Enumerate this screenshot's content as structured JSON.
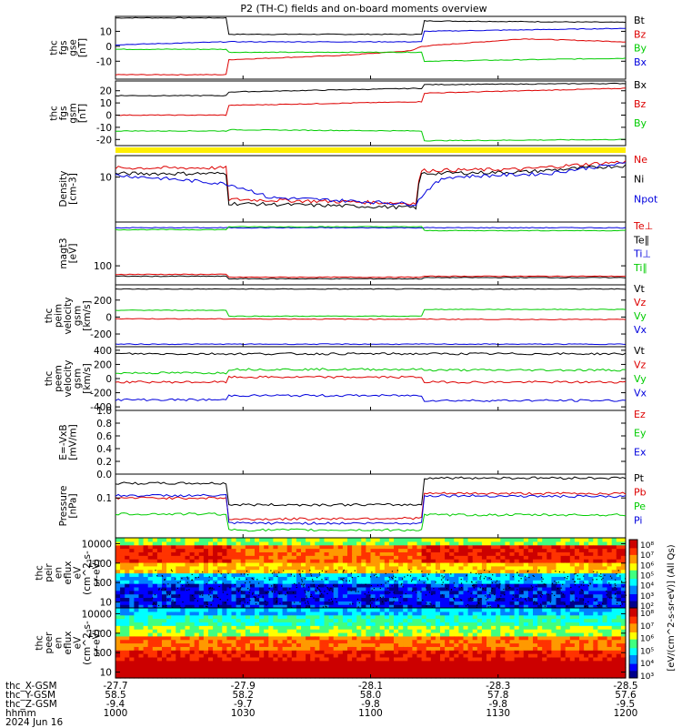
{
  "title": "P2 (TH-C) fields and on-board moments overview",
  "colors": {
    "black": "#000000",
    "red": "#dd0000",
    "green": "#00cc00",
    "blue": "#0000dd",
    "yellow": "#ffee00"
  },
  "chart_data": [
    {
      "type": "line",
      "panel": "fgs_gse",
      "ylabel": [
        "thc",
        "fgs",
        "gse",
        "[nT]"
      ],
      "ylim": [
        -22,
        20
      ],
      "ytick_labels": [
        "10",
        "0",
        "-10"
      ],
      "ytick_values": [
        10,
        0,
        -10
      ],
      "series": [
        {
          "name": "Bt",
          "color": "#000000",
          "segments": [
            [
              0,
              19
            ],
            [
              0.22,
              19
            ],
            [
              0.22,
              8
            ],
            [
              0.6,
              8
            ],
            [
              0.6,
              17
            ],
            [
              1,
              16
            ]
          ]
        },
        {
          "name": "Bz",
          "color": "#dd0000",
          "segments": [
            [
              0,
              -19
            ],
            [
              0.22,
              -19
            ],
            [
              0.22,
              -9
            ],
            [
              0.45,
              -6
            ],
            [
              0.58,
              -3
            ],
            [
              0.6,
              0
            ],
            [
              0.8,
              5
            ],
            [
              1,
              3
            ]
          ]
        },
        {
          "name": "By",
          "color": "#00cc00",
          "segments": [
            [
              0,
              -2
            ],
            [
              0.22,
              -2
            ],
            [
              0.22,
              -4
            ],
            [
              0.6,
              -4
            ],
            [
              0.6,
              -10
            ],
            [
              1,
              -8
            ]
          ]
        },
        {
          "name": "Bx",
          "color": "#0000dd",
          "segments": [
            [
              0,
              1
            ],
            [
              0.22,
              3
            ],
            [
              0.6,
              3
            ],
            [
              0.6,
              10
            ],
            [
              1,
              12
            ]
          ]
        }
      ]
    },
    {
      "type": "line",
      "panel": "fgs_gsm",
      "ylabel": [
        "thc",
        "fgs",
        "gsm",
        "[nT]"
      ],
      "ylim": [
        -25,
        28
      ],
      "ytick_labels": [
        "20",
        "10",
        "0",
        "-10",
        "-20"
      ],
      "ytick_values": [
        20,
        10,
        0,
        -10,
        -20
      ],
      "series": [
        {
          "name": "Bx",
          "color": "#000000",
          "segments": [
            [
              0,
              16
            ],
            [
              0.22,
              16
            ],
            [
              0.22,
              19
            ],
            [
              0.6,
              22
            ],
            [
              0.6,
              25
            ],
            [
              1,
              26
            ]
          ]
        },
        {
          "name": "Bz",
          "color": "#dd0000",
          "segments": [
            [
              0,
              0
            ],
            [
              0.22,
              0
            ],
            [
              0.22,
              8
            ],
            [
              0.6,
              11
            ],
            [
              0.6,
              18
            ],
            [
              1,
              22
            ]
          ]
        },
        {
          "name": "By",
          "color": "#00cc00",
          "segments": [
            [
              0,
              -13
            ],
            [
              0.22,
              -13
            ],
            [
              0.22,
              -12
            ],
            [
              0.6,
              -13
            ],
            [
              0.6,
              -21
            ],
            [
              1,
              -20
            ]
          ]
        }
      ]
    },
    {
      "type": "line",
      "panel": "density",
      "ylabel": [
        "Density",
        "[cm-3]"
      ],
      "ylim": [
        1,
        30
      ],
      "yscale": "log",
      "ytick_labels": [
        "10"
      ],
      "ytick_values": [
        10
      ],
      "series": [
        {
          "name": "Ne",
          "color": "#dd0000",
          "segments": [
            [
              0,
              16
            ],
            [
              0.22,
              16
            ],
            [
              0.22,
              3.2
            ],
            [
              0.59,
              2.6
            ],
            [
              0.6,
              14
            ],
            [
              0.8,
              15
            ],
            [
              1,
              22
            ]
          ]
        },
        {
          "name": "Ni",
          "color": "#000000",
          "segments": [
            [
              0,
              12
            ],
            [
              0.22,
              12
            ],
            [
              0.22,
              2.6
            ],
            [
              0.59,
              2.1
            ],
            [
              0.6,
              12
            ],
            [
              0.8,
              13
            ],
            [
              1,
              18
            ]
          ]
        },
        {
          "name": "Npot",
          "color": "#0000dd",
          "segments": [
            [
              0,
              11
            ],
            [
              0.22,
              7
            ],
            [
              0.3,
              3.5
            ],
            [
              0.59,
              2.5
            ],
            [
              0.65,
              10
            ],
            [
              0.85,
              12
            ],
            [
              1,
              20
            ]
          ]
        }
      ]
    },
    {
      "type": "line",
      "panel": "temperature",
      "ylabel": [
        "magt3",
        "[eV]"
      ],
      "ylim": [
        0,
        330
      ],
      "ytick_labels": [
        "100"
      ],
      "ytick_values": [
        100
      ],
      "series": [
        {
          "name": "Te⊥",
          "color": "#dd0000",
          "segments": [
            [
              0,
              55
            ],
            [
              0.22,
              55
            ],
            [
              0.22,
              40
            ],
            [
              0.6,
              40
            ],
            [
              0.6,
              45
            ],
            [
              1,
              45
            ]
          ]
        },
        {
          "name": "Te∥",
          "color": "#000000",
          "segments": [
            [
              0,
              45
            ],
            [
              0.22,
              45
            ],
            [
              0.22,
              32
            ],
            [
              0.6,
              32
            ],
            [
              0.6,
              38
            ],
            [
              1,
              38
            ]
          ]
        },
        {
          "name": "Ti⊥",
          "color": "#0000dd",
          "segments": [
            [
              0,
              300
            ],
            [
              1,
              300
            ]
          ]
        },
        {
          "name": "Ti∥",
          "color": "#00cc00",
          "segments": [
            [
              0,
              290
            ],
            [
              0.22,
              290
            ],
            [
              0.22,
              305
            ],
            [
              0.6,
              305
            ],
            [
              0.6,
              285
            ],
            [
              1,
              285
            ]
          ]
        }
      ]
    },
    {
      "type": "line",
      "panel": "peim_velocity",
      "ylabel": [
        "thc",
        "peim",
        "velocity",
        "gsm",
        "[km/s]"
      ],
      "ylim": [
        -350,
        380
      ],
      "ytick_labels": [
        "200",
        "0",
        "-200"
      ],
      "ytick_values": [
        200,
        0,
        -200
      ],
      "series": [
        {
          "name": "Vt",
          "color": "#000000",
          "segments": [
            [
              0,
              330
            ],
            [
              1,
              330
            ]
          ]
        },
        {
          "name": "Vz",
          "color": "#dd0000",
          "segments": [
            [
              0,
              -20
            ],
            [
              1,
              -30
            ]
          ]
        },
        {
          "name": "Vy",
          "color": "#00cc00",
          "segments": [
            [
              0,
              80
            ],
            [
              0.22,
              80
            ],
            [
              0.22,
              10
            ],
            [
              0.6,
              10
            ],
            [
              0.6,
              90
            ],
            [
              1,
              90
            ]
          ]
        },
        {
          "name": "Vx",
          "color": "#0000dd",
          "segments": [
            [
              0,
              -320
            ],
            [
              1,
              -320
            ]
          ]
        }
      ]
    },
    {
      "type": "line",
      "panel": "peem_velocity",
      "ylabel": [
        "thc",
        "peem",
        "velocity",
        "gsm",
        "[km/s]"
      ],
      "ylim": [
        -450,
        450
      ],
      "ytick_labels": [
        "400",
        "200",
        "0",
        "-200",
        "-400"
      ],
      "ytick_values": [
        400,
        200,
        0,
        -200,
        -400
      ],
      "series": [
        {
          "name": "Vt",
          "color": "#000000",
          "segments": [
            [
              0,
              350
            ],
            [
              1,
              350
            ]
          ]
        },
        {
          "name": "Vz",
          "color": "#dd0000",
          "segments": [
            [
              0,
              -50
            ],
            [
              0.22,
              -50
            ],
            [
              0.22,
              20
            ],
            [
              0.6,
              20
            ],
            [
              0.6,
              -50
            ],
            [
              1,
              -50
            ]
          ]
        },
        {
          "name": "Vy",
          "color": "#00cc00",
          "segments": [
            [
              0,
              80
            ],
            [
              0.22,
              80
            ],
            [
              0.22,
              130
            ],
            [
              0.6,
              130
            ],
            [
              0.6,
              120
            ],
            [
              1,
              120
            ]
          ]
        },
        {
          "name": "Vx",
          "color": "#0000dd",
          "segments": [
            [
              0,
              -300
            ],
            [
              0.22,
              -300
            ],
            [
              0.22,
              -240
            ],
            [
              0.6,
              -240
            ],
            [
              0.6,
              -310
            ],
            [
              1,
              -310
            ]
          ]
        }
      ]
    },
    {
      "type": "line",
      "panel": "efield",
      "ylabel": [
        "E=-VxB",
        "[mV/m]"
      ],
      "ylim": [
        0,
        1
      ],
      "ytick_labels": [
        "1.0",
        "0.8",
        "0.6",
        "0.4",
        "0.2",
        "0.0"
      ],
      "ytick_values": [
        1.0,
        0.8,
        0.6,
        0.4,
        0.2,
        0.0
      ],
      "series": [
        {
          "name": "Ez",
          "color": "#dd0000",
          "segments": []
        },
        {
          "name": "Ey",
          "color": "#00cc00",
          "segments": []
        },
        {
          "name": "Ex",
          "color": "#0000dd",
          "segments": []
        }
      ]
    },
    {
      "type": "line",
      "panel": "pressure",
      "ylabel": [
        "Pressure",
        "[nPa]"
      ],
      "ylim": [
        0.005,
        0.6
      ],
      "yscale": "log",
      "ytick_labels": [
        "0.1"
      ],
      "ytick_values": [
        0.1
      ],
      "series": [
        {
          "name": "Pt",
          "color": "#000000",
          "segments": [
            [
              0,
              0.3
            ],
            [
              0.22,
              0.3
            ],
            [
              0.22,
              0.06
            ],
            [
              0.6,
              0.06
            ],
            [
              0.6,
              0.45
            ],
            [
              1,
              0.45
            ]
          ]
        },
        {
          "name": "Pb",
          "color": "#dd0000",
          "segments": [
            [
              0,
              0.1
            ],
            [
              0.22,
              0.1
            ],
            [
              0.22,
              0.02
            ],
            [
              0.6,
              0.022
            ],
            [
              0.6,
              0.14
            ],
            [
              1,
              0.14
            ]
          ]
        },
        {
          "name": "Pe",
          "color": "#00cc00",
          "segments": [
            [
              0,
              0.03
            ],
            [
              0.22,
              0.03
            ],
            [
              0.22,
              0.009
            ],
            [
              0.6,
              0.009
            ],
            [
              0.6,
              0.028
            ],
            [
              1,
              0.028
            ]
          ]
        },
        {
          "name": "Pi",
          "color": "#0000dd",
          "segments": [
            [
              0,
              0.12
            ],
            [
              0.22,
              0.12
            ],
            [
              0.22,
              0.015
            ],
            [
              0.6,
              0.015
            ],
            [
              0.6,
              0.12
            ],
            [
              1,
              0.11
            ]
          ]
        }
      ]
    },
    {
      "type": "heatmap",
      "panel": "peir_en_eflux",
      "ylabel": [
        "thc",
        "peir",
        "en",
        "eflux",
        "eV",
        "(cm^2-s-",
        "sr-eV)"
      ],
      "yscale": "log",
      "ytick_labels": [
        "10000",
        "1000",
        "100",
        "10"
      ],
      "ytick_values": [
        10000,
        1000,
        100,
        10
      ]
    },
    {
      "type": "heatmap",
      "panel": "peer_en_eflux",
      "ylabel": [
        "thc",
        "peer",
        "en",
        "eflux",
        "eV",
        "(cm^2-s-",
        "sr-eV)"
      ],
      "yscale": "log",
      "ytick_labels": [
        "10000",
        "1000",
        "100",
        "10"
      ],
      "ytick_values": [
        10000,
        1000,
        100,
        10
      ]
    }
  ],
  "colorbar": {
    "label": "[eV/(cm^2-s-sr-eV)] (All Qs)",
    "upper_ticks": [
      "10⁸",
      "10⁷",
      "10⁶",
      "10⁵",
      "10⁴",
      "10³",
      "10²"
    ],
    "lower_ticks": [
      "10⁸",
      "10⁷",
      "10⁶",
      "10⁵",
      "10⁴",
      "10³"
    ]
  },
  "xaxis": {
    "row_labels": [
      "thc_X-GSM",
      "thc_Y-GSM",
      "thc_Z-GSM",
      "hhmm",
      "2024 Jun 16"
    ],
    "columns": [
      {
        "x": "-27.7",
        "y": "58.5",
        "z": "-9.4",
        "hhmm": "1000"
      },
      {
        "x": "-27.9",
        "y": "58.2",
        "z": "-9.7",
        "hhmm": "1030"
      },
      {
        "x": "-28.1",
        "y": "58.0",
        "z": "-9.8",
        "hhmm": "1100"
      },
      {
        "x": "-28.3",
        "y": "57.8",
        "z": "-9.8",
        "hhmm": "1130"
      },
      {
        "x": "-28.5",
        "y": "57.6",
        "z": "-9.5",
        "hhmm": "1200"
      }
    ]
  },
  "legend_colors": {
    "fgs_gse": [
      "#000000",
      "#dd0000",
      "#00cc00",
      "#0000dd"
    ],
    "fgs_gsm": [
      "#000000",
      "#dd0000",
      "#00cc00"
    ],
    "density": [
      "#dd0000",
      "#000000",
      "#0000dd"
    ],
    "temperature": [
      "#dd0000",
      "#000000",
      "#0000dd",
      "#00cc00"
    ],
    "peim_velocity": [
      "#000000",
      "#dd0000",
      "#00cc00",
      "#0000dd"
    ],
    "peem_velocity": [
      "#000000",
      "#dd0000",
      "#00cc00",
      "#0000dd"
    ],
    "efield": [
      "#dd0000",
      "#00cc00",
      "#0000dd"
    ],
    "pressure": [
      "#000000",
      "#dd0000",
      "#00cc00",
      "#0000dd"
    ]
  }
}
